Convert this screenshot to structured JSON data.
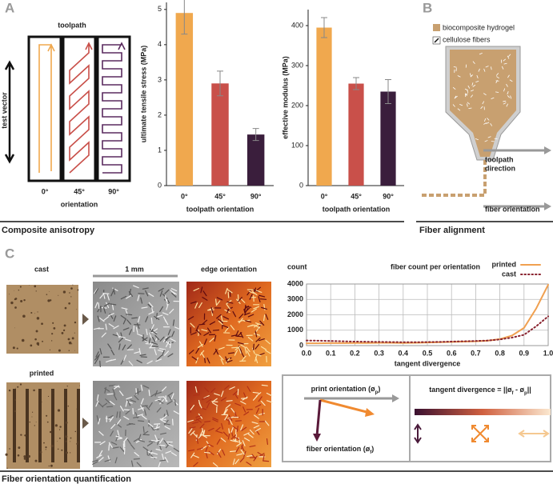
{
  "chart_data": [
    {
      "type": "bar",
      "ylabel": "ultimate tensile stress (MPa)",
      "xlabel": "toolpath orientation",
      "categories": [
        "0°",
        "45°",
        "90°"
      ],
      "values": [
        4.9,
        2.9,
        1.45
      ],
      "errors": [
        0.6,
        0.35,
        0.17
      ],
      "colors": [
        "#f0a84e",
        "#c9504a",
        "#3a1e3c"
      ],
      "ylim": [
        0,
        5.2
      ],
      "yticks": [
        0,
        1,
        2,
        3,
        4,
        5
      ]
    },
    {
      "type": "bar",
      "ylabel": "effective modulus (MPa)",
      "xlabel": "toolpath orientation",
      "categories": [
        "0°",
        "45°",
        "90°"
      ],
      "values": [
        395,
        255,
        235
      ],
      "errors": [
        25,
        15,
        30
      ],
      "colors": [
        "#f0a84e",
        "#c9504a",
        "#3a1e3c"
      ],
      "ylim": [
        0,
        440
      ],
      "yticks": [
        0,
        100,
        200,
        300,
        400
      ]
    },
    {
      "type": "line",
      "title": "fiber count per orientation",
      "ylabel": "count",
      "xlabel": "tangent divergence",
      "x": [
        0,
        0.05,
        0.1,
        0.15,
        0.2,
        0.25,
        0.3,
        0.35,
        0.4,
        0.45,
        0.5,
        0.55,
        0.6,
        0.65,
        0.7,
        0.75,
        0.8,
        0.85,
        0.9,
        0.95,
        1
      ],
      "series": [
        {
          "name": "printed",
          "color": "#f0a050",
          "linestyle": "solid",
          "values": [
            150,
            150,
            160,
            160,
            170,
            170,
            180,
            180,
            170,
            180,
            200,
            220,
            240,
            260,
            280,
            320,
            420,
            650,
            1150,
            2400,
            3950
          ]
        },
        {
          "name": "cast",
          "color": "#8a2430",
          "linestyle": "dotted",
          "values": [
            330,
            320,
            300,
            280,
            260,
            250,
            240,
            230,
            220,
            220,
            230,
            240,
            260,
            280,
            300,
            330,
            400,
            520,
            700,
            1250,
            1900
          ]
        }
      ],
      "xlim": [
        0,
        1
      ],
      "xticks": [
        {
          "value": 0,
          "label": "0.0"
        },
        0.1,
        0.2,
        0.3,
        0.4,
        0.5,
        0.6,
        0.7,
        0.8,
        0.9,
        {
          "value": 1,
          "label": "1.0"
        }
      ],
      "ylim": [
        0,
        4000
      ],
      "yticks": [
        0,
        1000,
        2000,
        3000,
        4000
      ],
      "grid": true
    }
  ],
  "panel_a": {
    "letter": "A",
    "toolpath_label": "toolpath",
    "test_vector": "test vector",
    "orientations": [
      "0°",
      "45°",
      "90°"
    ],
    "orientation_label": "orientation",
    "caption": "Composite anisotropy"
  },
  "panel_b": {
    "letter": "B",
    "legend": [
      "biocomposite hydrogel",
      "cellulose fibers"
    ],
    "toolpath_direction": [
      "toolpath",
      "direction"
    ],
    "fiber_orientation": "fiber orientation",
    "caption": "Fiber alignment"
  },
  "panel_c": {
    "letter": "C",
    "cast": "cast",
    "scale": "1 mm",
    "edge": "edge orientation",
    "printed": "printed",
    "print_orientation": [
      "print orientation (ø",
      "p",
      ")"
    ],
    "fiber_orientation": [
      "fiber orientation (ø",
      "f",
      ")"
    ],
    "tangent_divergence": [
      "tangent divergence = ||ø",
      "f",
      " - ø",
      "p",
      "||"
    ],
    "caption": "Fiber orientation quantification"
  }
}
